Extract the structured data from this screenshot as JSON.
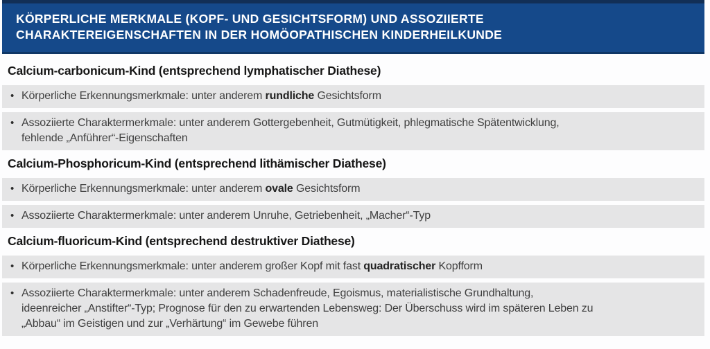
{
  "bullet_glyph": "•",
  "colors": {
    "header_bg": "#15498a",
    "header_border_top": "#122f56",
    "header_border_bottom": "#0f3766",
    "row_bg": "#e5e5e6",
    "heading_text": "#161616",
    "body_text": "#3f3f3f",
    "header_text": "#ffffff"
  },
  "banner": {
    "title_line1": "KÖRPERLICHE MERKMALE (KOPF- UND GESICHTSFORM) UND ASSOZIIERTE",
    "title_line2": "CHARAKTEREIGENSCHAFTEN IN DER HOMÖOPATHISCHEN KINDERHEILKUNDE"
  },
  "sections": [
    {
      "heading": "Calcium-carbonicum-Kind (entsprechend lymphatischer Diathese)",
      "bullets": [
        {
          "lines": [
            [
              {
                "t": "Körperliche Erkennungsmerkmale: unter anderem ",
                "b": false
              },
              {
                "t": "rundliche",
                "b": true
              },
              {
                "t": " Gesichtsform",
                "b": false
              }
            ]
          ]
        },
        {
          "lines": [
            [
              {
                "t": "Assoziierte Charaktermerkmale: unter anderem Gottergebenheit, Gutmütigkeit, phlegmatische Spätentwicklung,",
                "b": false
              }
            ],
            [
              {
                "t": "fehlende „Anführer“-Eigenschaften",
                "b": false
              }
            ]
          ]
        }
      ]
    },
    {
      "heading": "Calcium-Phosphoricum-Kind (entsprechend lithämischer Diathese)",
      "bullets": [
        {
          "lines": [
            [
              {
                "t": "Körperliche Erkennungsmerkmale: unter anderem ",
                "b": false
              },
              {
                "t": "ovale",
                "b": true
              },
              {
                "t": " Gesichtsform",
                "b": false
              }
            ]
          ]
        },
        {
          "lines": [
            [
              {
                "t": "Assoziierte Charaktermerkmale: unter anderem Unruhe, Getriebenheit, „Macher“-Typ",
                "b": false
              }
            ]
          ]
        }
      ]
    },
    {
      "heading": "Calcium-fluoricum-Kind (entsprechend destruktiver Diathese)",
      "bullets": [
        {
          "lines": [
            [
              {
                "t": "Körperliche Erkennungsmerkmale: unter anderem großer Kopf mit fast ",
                "b": false
              },
              {
                "t": "quadratischer",
                "b": true
              },
              {
                "t": " Kopfform",
                "b": false
              }
            ]
          ]
        },
        {
          "lines": [
            [
              {
                "t": "Assoziierte Charaktermerkmale: unter anderem Schadenfreude, Egoismus, materialistische Grundhaltung,",
                "b": false
              }
            ],
            [
              {
                "t": "ideenreicher „Anstifter“-Typ; Prognose für den zu erwartenden Lebensweg: Der Überschuss wird im späteren Leben zu",
                "b": false
              }
            ],
            [
              {
                "t": "„Abbau“ im Geistigen und zur „Verhärtung“ im Gewebe führen",
                "b": false
              }
            ]
          ]
        }
      ]
    }
  ]
}
